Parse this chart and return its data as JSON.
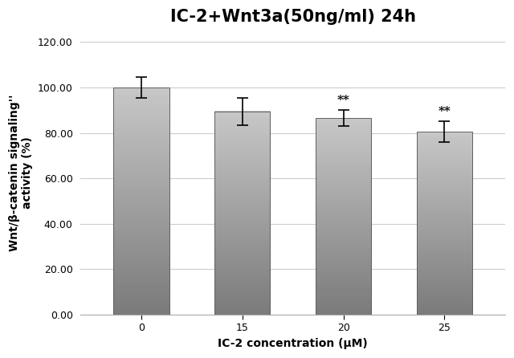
{
  "title": "IC-2+Wnt3a(50ng/ml) 24h",
  "categories": [
    "0",
    "15",
    "20",
    "25"
  ],
  "values": [
    100.0,
    89.5,
    86.5,
    80.5
  ],
  "errors": [
    4.5,
    6.0,
    3.5,
    4.5
  ],
  "bar_color_top": "#c0c0c0",
  "bar_color_bottom": "#808080",
  "bar_edge_color": "#606060",
  "xlabel": "IC-2 concentration (μM)",
  "ylabel": "Wnt/β-catenin signaling''\nactivity (%)",
  "ylim": [
    0,
    125
  ],
  "yticks": [
    0.0,
    20.0,
    40.0,
    60.0,
    80.0,
    100.0,
    120.0
  ],
  "ytick_labels": [
    "0.00",
    "20.00",
    "40.00",
    "60.00",
    "80.00",
    "100.00",
    "120.00"
  ],
  "significance": [
    "",
    "",
    "**",
    "**"
  ],
  "background_color": "#ffffff",
  "title_fontsize": 15,
  "label_fontsize": 10,
  "tick_fontsize": 9,
  "sig_fontsize": 11,
  "bar_width": 0.55,
  "x_positions": [
    0,
    1,
    2,
    3
  ]
}
